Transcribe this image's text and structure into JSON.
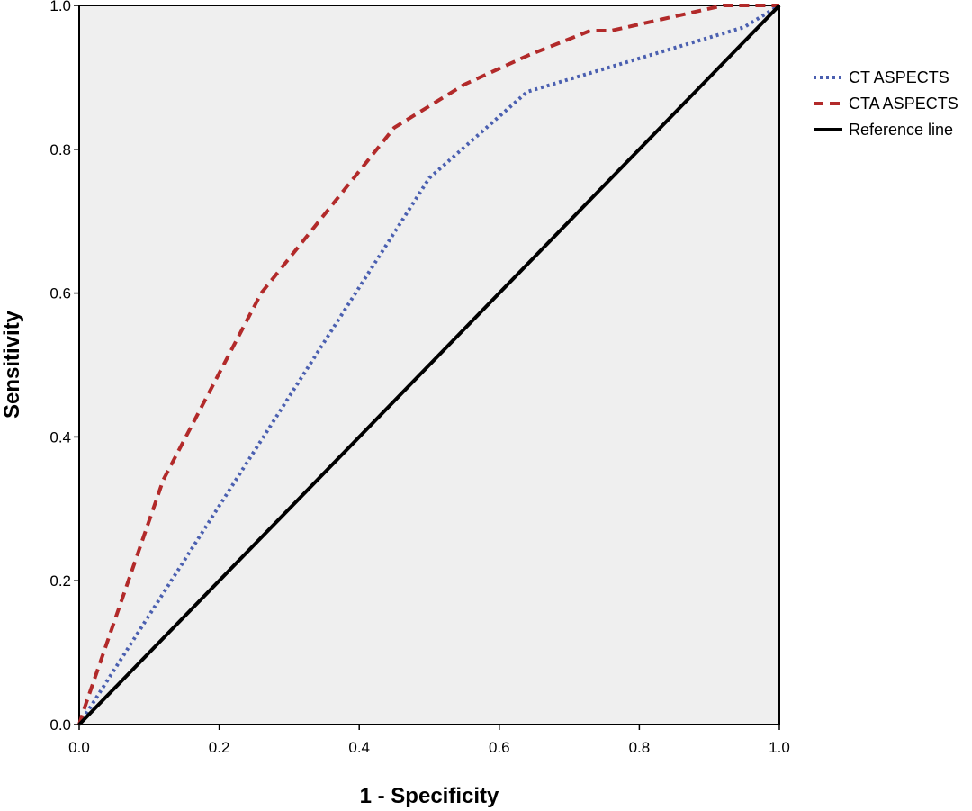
{
  "chart_data": {
    "type": "line",
    "title": "",
    "xlabel": "1 - Specificity",
    "ylabel": "Sensitivity",
    "xlim": [
      0.0,
      1.0
    ],
    "ylim": [
      0.0,
      1.0
    ],
    "x_ticks": [
      "0.0",
      "0.2",
      "0.4",
      "0.6",
      "0.8",
      "1.0"
    ],
    "y_ticks": [
      "0.0",
      "0.2",
      "0.4",
      "0.6",
      "0.8",
      "1.0"
    ],
    "grid": false,
    "legend_position": "right",
    "plot_background": "#efefef",
    "series": [
      {
        "name": "CT ASPECTS",
        "style": "dotted",
        "color": "#4a5fb0",
        "points": [
          [
            0.0,
            0.0
          ],
          [
            0.5,
            0.76
          ],
          [
            0.64,
            0.88
          ],
          [
            0.95,
            0.97
          ],
          [
            1.0,
            1.0
          ]
        ]
      },
      {
        "name": "CTA ASPECTS",
        "style": "dashed",
        "color": "#b22a2a",
        "points": [
          [
            0.0,
            0.0
          ],
          [
            0.01,
            0.03
          ],
          [
            0.12,
            0.34
          ],
          [
            0.26,
            0.6
          ],
          [
            0.45,
            0.83
          ],
          [
            0.55,
            0.89
          ],
          [
            0.64,
            0.93
          ],
          [
            0.73,
            0.965
          ],
          [
            0.76,
            0.965
          ],
          [
            0.92,
            1.0
          ],
          [
            1.0,
            1.0
          ]
        ]
      },
      {
        "name": "Reference line",
        "style": "solid",
        "color": "#000000",
        "points": [
          [
            0.0,
            0.0
          ],
          [
            1.0,
            1.0
          ]
        ]
      }
    ]
  }
}
